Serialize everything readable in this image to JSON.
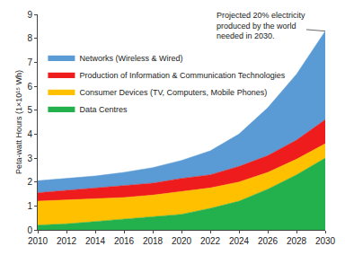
{
  "chart_data": {
    "type": "area",
    "stacked": true,
    "x": [
      2010,
      2012,
      2014,
      2016,
      2018,
      2020,
      2022,
      2024,
      2026,
      2028,
      2030
    ],
    "series": [
      {
        "name": "Data Centres",
        "color": "#22b14c",
        "values": [
          0.2,
          0.25,
          0.35,
          0.45,
          0.55,
          0.65,
          0.9,
          1.2,
          1.7,
          2.3,
          3.0
        ]
      },
      {
        "name": "Consumer Devices (TV, Computers, Mobile Phones)",
        "color": "#ffc000",
        "values": [
          1.0,
          1.0,
          0.95,
          0.9,
          0.9,
          0.95,
          0.85,
          0.8,
          0.7,
          0.65,
          0.6
        ]
      },
      {
        "name": "Production of Information & Communication Technologies",
        "color": "#ee1c1c",
        "values": [
          0.35,
          0.4,
          0.45,
          0.5,
          0.5,
          0.55,
          0.55,
          0.65,
          0.7,
          0.8,
          1.0
        ]
      },
      {
        "name": "Networks (Wireless & Wired)",
        "color": "#5b9bd5",
        "values": [
          0.5,
          0.5,
          0.5,
          0.55,
          0.65,
          0.75,
          1.0,
          1.35,
          2.0,
          2.75,
          3.7
        ]
      }
    ],
    "y_label": "Peta-watt Hours (1×10¹⁵ Wh)",
    "annotation": [
      "Projected 20% electricity",
      "produced by the world",
      "needed in 2030."
    ],
    "xlim": [
      2010,
      2030
    ],
    "xticks": [
      2010,
      2012,
      2014,
      2016,
      2018,
      2020,
      2022,
      2024,
      2026,
      2028,
      2030
    ],
    "ylim": [
      0,
      9
    ],
    "yticks": [
      0,
      1,
      2,
      3,
      4,
      5,
      6,
      7,
      8,
      9
    ],
    "grid": false,
    "legend": "upper left"
  }
}
